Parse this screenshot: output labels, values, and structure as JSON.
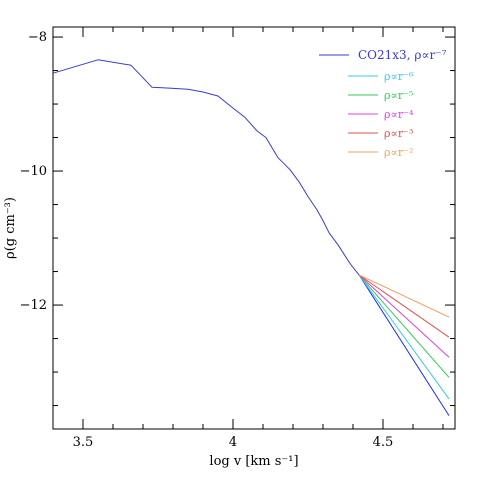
{
  "chart_data": {
    "type": "line",
    "xlabel": "log v [km s⁻¹]",
    "ylabel": "ρ(g cm⁻³)",
    "xlim": [
      3.4,
      4.74
    ],
    "ylim": [
      -13.85,
      -7.85
    ],
    "x_ticks": [
      3.5,
      4,
      4.5
    ],
    "x_tick_labels": [
      "3.5",
      "4",
      "4.5"
    ],
    "y_ticks": [
      -12,
      -10,
      -8
    ],
    "y_tick_labels": [
      "−12",
      "−10",
      "−8"
    ],
    "grid": false,
    "legend_position": "top-right",
    "series": [
      {
        "name": "CO21x3, ρ∝r⁻⁷",
        "color": "#3a3ad0",
        "x": [
          3.4,
          3.55,
          3.66,
          3.73,
          3.78,
          3.85,
          3.9,
          3.95,
          4.0,
          4.04,
          4.08,
          4.11,
          4.15,
          4.19,
          4.22,
          4.25,
          4.28,
          4.3,
          4.32,
          4.35,
          4.39,
          4.42
        ],
        "y": [
          -8.54,
          -8.34,
          -8.42,
          -8.75,
          -8.76,
          -8.78,
          -8.82,
          -8.88,
          -9.06,
          -9.2,
          -9.4,
          -9.5,
          -9.8,
          -9.98,
          -10.16,
          -10.38,
          -10.58,
          -10.74,
          -10.92,
          -11.1,
          -11.38,
          -11.55
        ]
      },
      {
        "name": "ρ∝r⁻⁷",
        "color": "#1c2cf2",
        "x": [
          4.42,
          4.72
        ],
        "y": [
          -11.55,
          -13.65
        ]
      },
      {
        "name": "ρ∝r⁻⁶",
        "color": "#33cce8",
        "x": [
          4.42,
          4.72
        ],
        "y": [
          -11.55,
          -13.4
        ]
      },
      {
        "name": "ρ∝r⁻⁵",
        "color": "#33cc55",
        "x": [
          4.42,
          4.72
        ],
        "y": [
          -11.55,
          -13.08
        ]
      },
      {
        "name": "ρ∝r⁻⁴",
        "color": "#e040e0",
        "x": [
          4.42,
          4.72
        ],
        "y": [
          -11.55,
          -12.78
        ]
      },
      {
        "name": "ρ∝r⁻³",
        "color": "#e05050",
        "x": [
          4.42,
          4.72
        ],
        "y": [
          -11.55,
          -12.48
        ]
      },
      {
        "name": "ρ∝r⁻²",
        "color": "#f0a060",
        "x": [
          4.42,
          4.72
        ],
        "y": [
          -11.55,
          -12.18
        ]
      }
    ],
    "legend": [
      {
        "label": "CO21x3, ρ∝r⁻⁷",
        "color": "#3a3ad0",
        "text_color": "#3a3ad0"
      },
      {
        "label": "ρ∝r⁻⁶",
        "color": "#33cce8",
        "text_color": "#33cce8"
      },
      {
        "label": "ρ∝r⁻⁵",
        "color": "#33cc55",
        "text_color": "#33cc55"
      },
      {
        "label": "ρ∝r⁻⁴",
        "color": "#e040e0",
        "text_color": "#e040e0"
      },
      {
        "label": "ρ∝r⁻³",
        "color": "#e05050",
        "text_color": "#e05050"
      },
      {
        "label": "ρ∝r⁻²",
        "color": "#f0a060",
        "text_color": "#f0a060"
      }
    ]
  }
}
